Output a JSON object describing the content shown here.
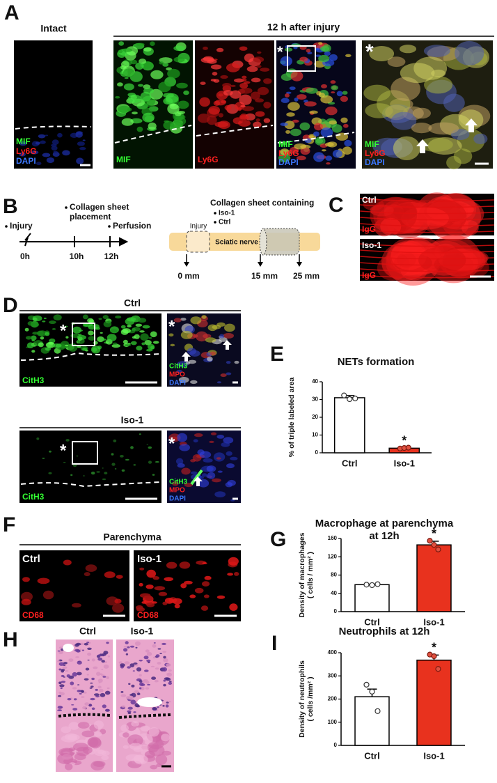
{
  "panel_a": {
    "letter": "A",
    "intact": "Intact",
    "condition": "12 h after injury",
    "intact_labels": [
      "MIF",
      "Ly6G",
      "DAPI"
    ],
    "mif_label": "MIF",
    "ly6g_label": "Ly6G",
    "merge_labels": [
      "MIF",
      "Ly6G",
      "DAPI"
    ],
    "merge_marker": "*",
    "zoom_labels": [
      "MIF",
      "Ly6G",
      "DAPI"
    ],
    "zoom_marker": "*"
  },
  "panel_b": {
    "letter": "B",
    "timeline": {
      "injury": "Injury",
      "collagen": [
        "Collagen sheet",
        "placement"
      ],
      "perfusion": "Perfusion",
      "times": [
        "0h",
        "10h",
        "12h"
      ]
    },
    "diagram": {
      "heading": "Collagen sheet containing",
      "groups": [
        "Iso-1",
        "Ctrl"
      ],
      "injury": "Injury",
      "nerve": "Sciatic nerve",
      "distances": [
        "0 mm",
        "15 mm",
        "25 mm"
      ]
    }
  },
  "panel_c": {
    "letter": "C",
    "images": [
      {
        "group": "Ctrl",
        "stain": "IgG"
      },
      {
        "group": "Iso-1",
        "stain": "IgG"
      }
    ]
  },
  "panel_d": {
    "letter": "D",
    "rows": [
      {
        "group": "Ctrl",
        "stain": "CitH3",
        "zoom_labels": [
          "CitH3",
          "MPO",
          "DAPI"
        ],
        "marker": "*"
      },
      {
        "group": "Iso-1",
        "stain": "CitH3",
        "zoom_labels": [
          "CitH3",
          "MPO",
          "DAPI"
        ],
        "marker": "*"
      }
    ]
  },
  "panel_e": {
    "letter": "E"
  },
  "panel_f": {
    "letter": "F",
    "heading": "Parenchyma",
    "images": [
      {
        "group": "Ctrl",
        "stain": "CD68"
      },
      {
        "group": "Iso-1",
        "stain": "CD68"
      }
    ]
  },
  "panel_g": {
    "letter": "G"
  },
  "panel_h": {
    "letter": "H",
    "groups": [
      "Ctrl",
      "Iso-1"
    ]
  },
  "panel_i": {
    "letter": "I"
  },
  "chart_data": [
    {
      "type": "bar",
      "title": "NETs formation",
      "ylabel": [
        "% of triple labeled area"
      ],
      "categories": [
        "Ctrl",
        "Iso-1"
      ],
      "values": [
        31,
        2.6
      ],
      "errors": [
        1.2,
        0.3
      ],
      "points": [
        [
          32.3,
          30.2,
          30.6
        ],
        [
          2.4,
          2.7,
          2.9
        ]
      ],
      "colors": [
        "#ffffff",
        "#e8321e"
      ],
      "ylim": [
        0,
        40
      ],
      "yticks": [
        0,
        10,
        20,
        30,
        40
      ],
      "annotations": [
        {
          "text": "*",
          "category": "Iso-1"
        }
      ]
    },
    {
      "type": "bar",
      "title": [
        "Macrophage at parenchyma",
        "at 12h"
      ],
      "ylabel": [
        "Density of macrophages",
        "( cells / mm² )"
      ],
      "categories": [
        "Ctrl",
        "Iso-1"
      ],
      "values": [
        59,
        146
      ],
      "errors": [
        1,
        8
      ],
      "points": [
        [
          59,
          58,
          60
        ],
        [
          155,
          146,
          136
        ]
      ],
      "colors": [
        "#ffffff",
        "#e8321e"
      ],
      "ylim": [
        0,
        160
      ],
      "yticks": [
        0,
        40,
        80,
        120,
        160
      ],
      "annotations": [
        {
          "text": "*",
          "category": "Iso-1"
        }
      ]
    },
    {
      "type": "bar",
      "title": "Neutrophils at 12h",
      "ylabel": [
        "Density of neutrophils",
        "( cells /mm² )"
      ],
      "categories": [
        "Ctrl",
        "Iso-1"
      ],
      "values": [
        210,
        368
      ],
      "errors": [
        33,
        22
      ],
      "points": [
        [
          262,
          232,
          148
        ],
        [
          392,
          385,
          330
        ]
      ],
      "colors": [
        "#ffffff",
        "#e8321e"
      ],
      "ylim": [
        0,
        400
      ],
      "yticks": [
        0,
        100,
        200,
        300,
        400
      ],
      "annotations": [
        {
          "text": "*",
          "category": "Iso-1"
        }
      ]
    }
  ]
}
